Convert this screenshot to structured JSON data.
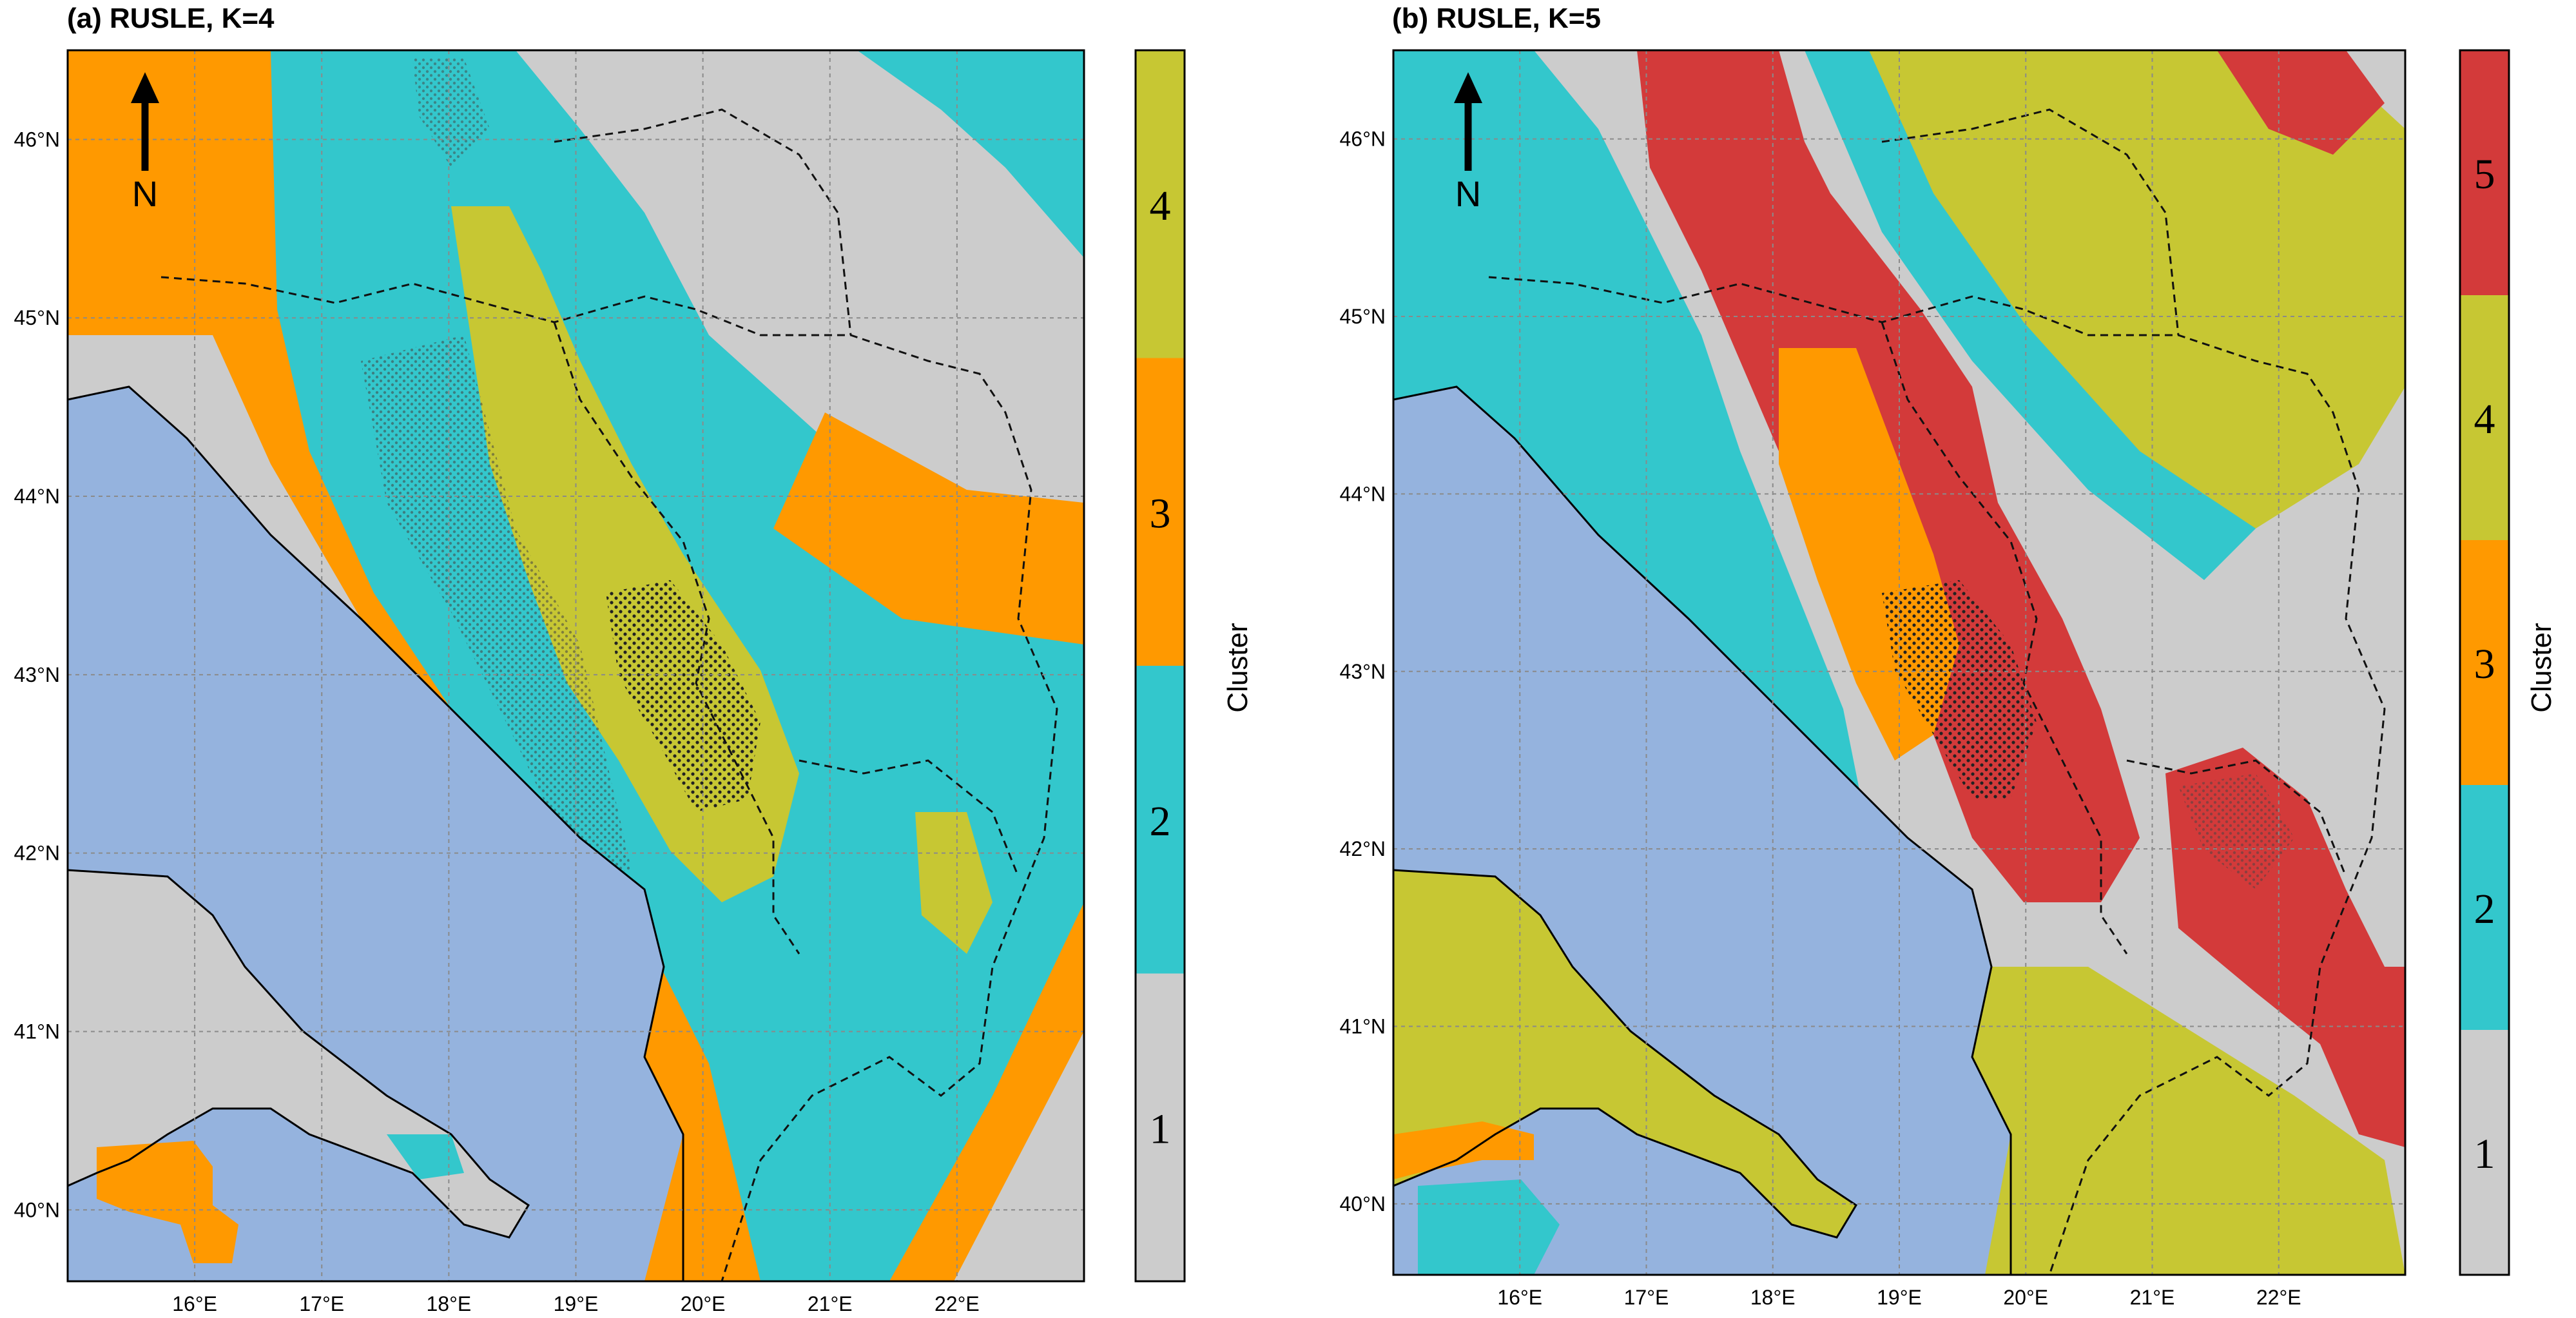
{
  "colors": {
    "sea": "#95b3de",
    "cluster_1": "#cccccc",
    "cluster_2": "#33c7cc",
    "cluster_3": "#ff9900",
    "cluster_4": "#c7c733",
    "cluster_5": "#d33a3a",
    "grid": "#8a8a8a",
    "coast": "#000000"
  },
  "axes": {
    "lon_range": [
      15.0,
      23.0
    ],
    "lat_range": [
      39.6,
      46.5
    ],
    "lon_ticks": [
      "16°E",
      "17°E",
      "18°E",
      "19°E",
      "20°E",
      "21°E",
      "22°E"
    ],
    "lat_ticks": [
      "40°N",
      "41°N",
      "42°N",
      "43°N",
      "44°N",
      "45°N",
      "46°N"
    ]
  },
  "north_arrow": {
    "icon": "north-arrow-icon",
    "label": "N"
  },
  "panels": [
    {
      "title": "(a) RUSLE, K=4",
      "colorbar_label": "Cluster",
      "clusters": [
        "1",
        "2",
        "3",
        "4"
      ]
    },
    {
      "title": "(b) RUSLE, K=5",
      "colorbar_label": "Cluster",
      "clusters": [
        "1",
        "2",
        "3",
        "4",
        "5"
      ]
    }
  ]
}
